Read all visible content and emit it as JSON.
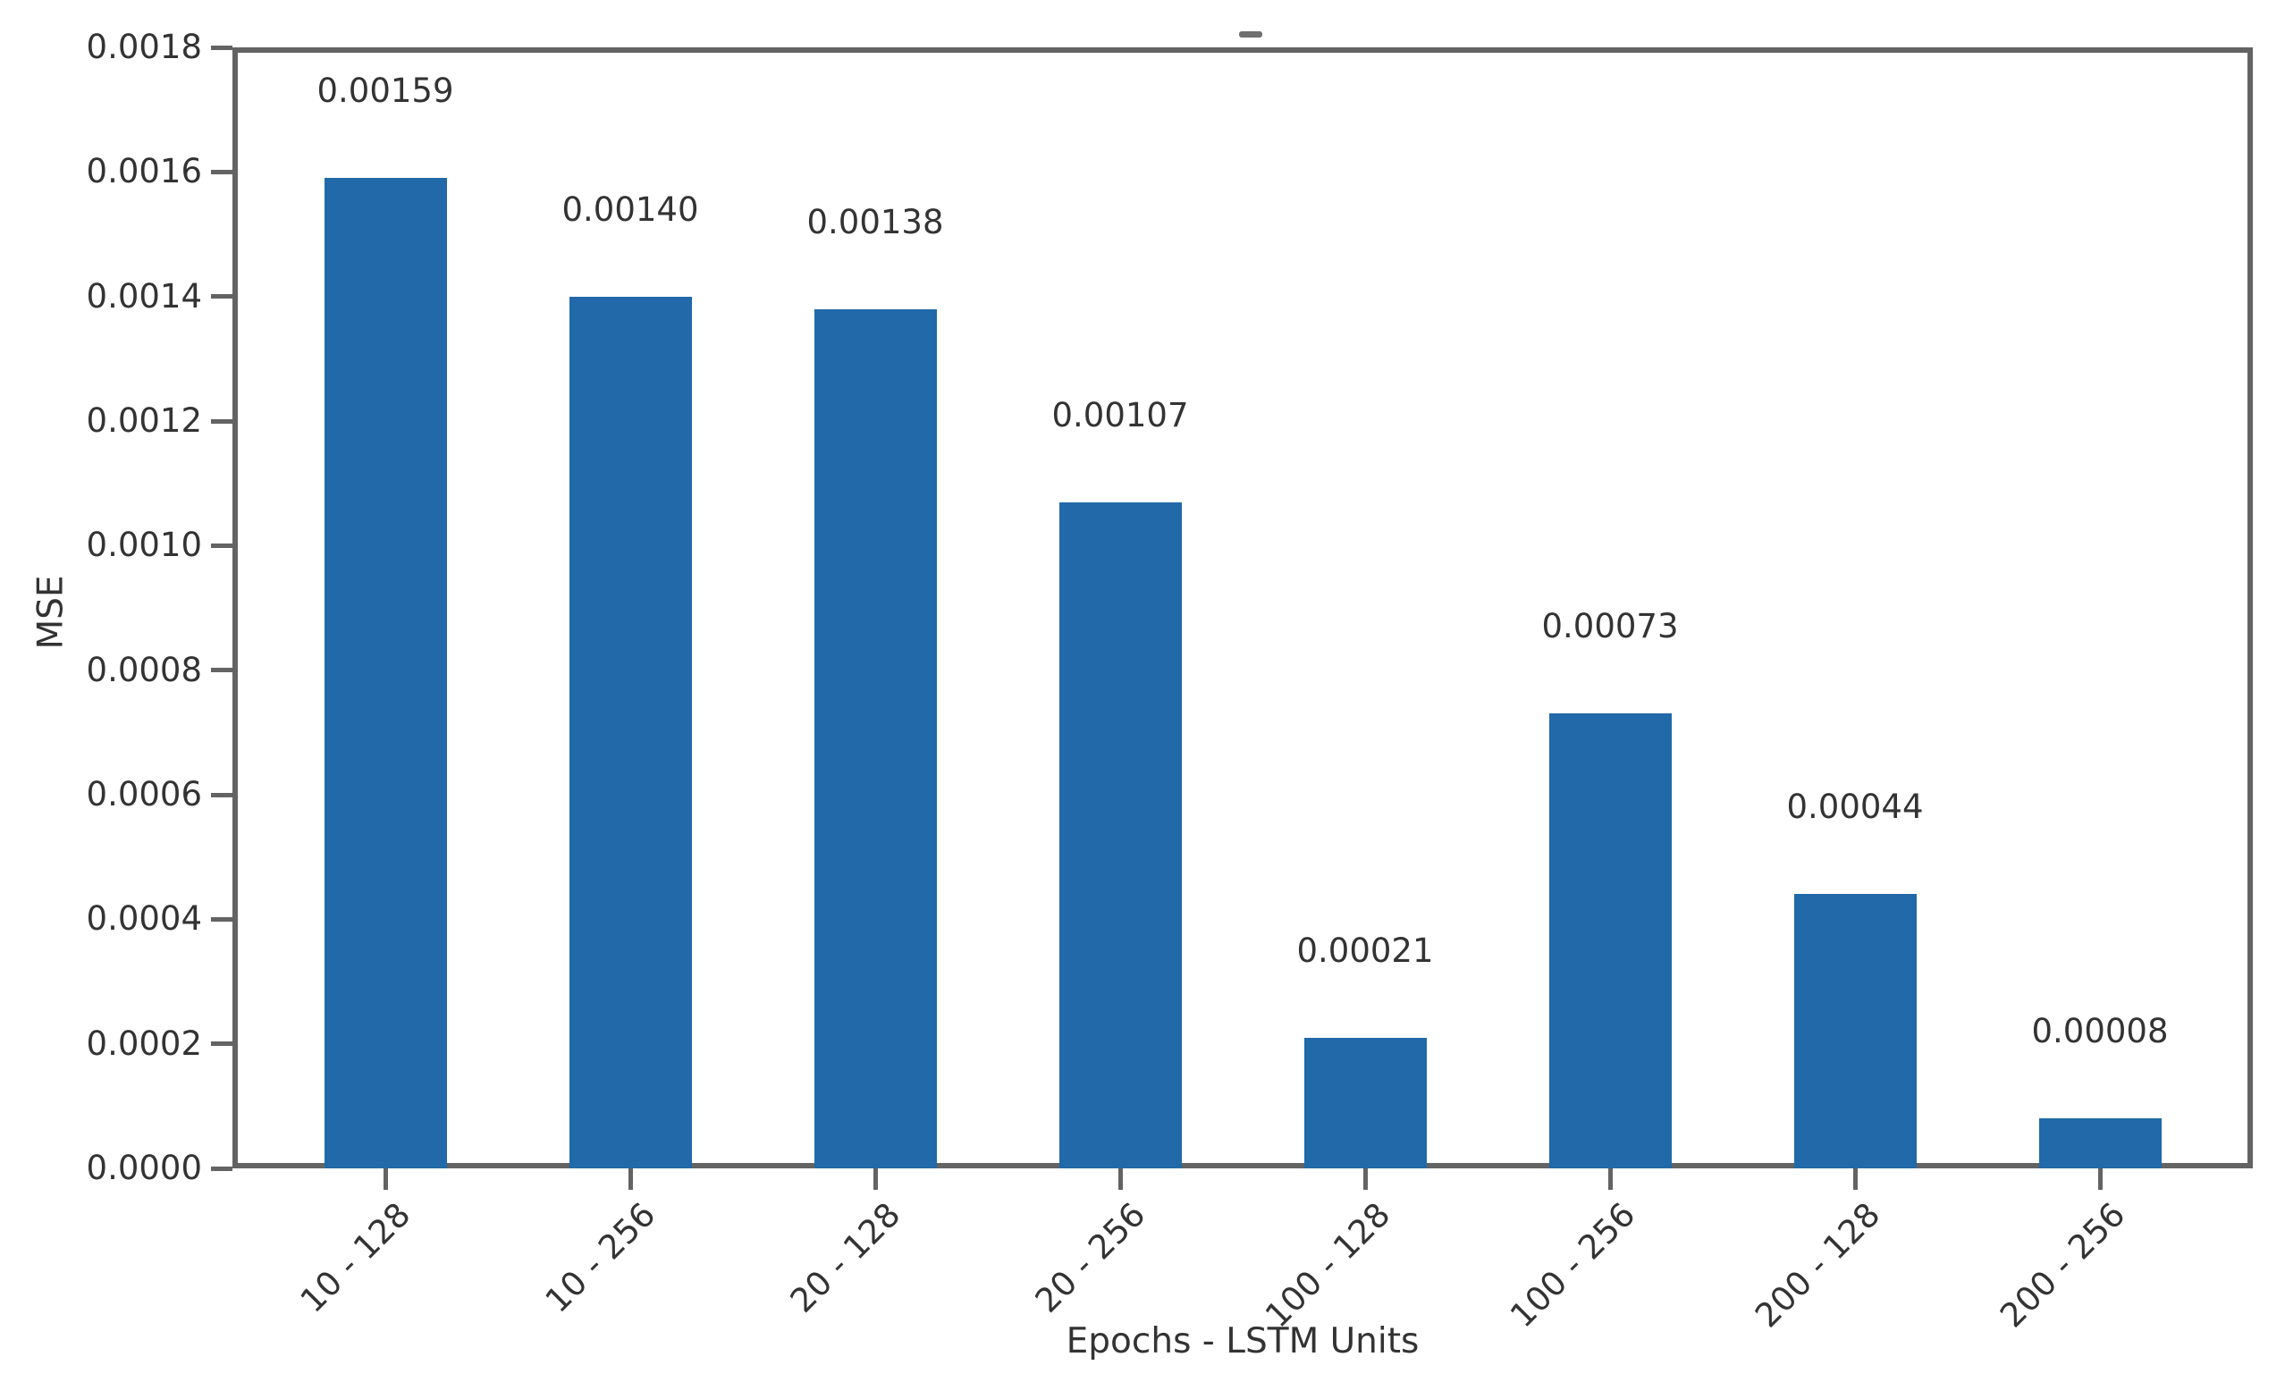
{
  "figure": {
    "title_fragment": "-"
  },
  "chart_data": {
    "type": "bar",
    "title": "",
    "xlabel": "Epochs - LSTM Units",
    "ylabel": "MSE",
    "categories": [
      "10 - 128",
      "10 - 256",
      "20 - 128",
      "20 - 256",
      "100 - 128",
      "100 - 256",
      "200 - 128",
      "200 - 256"
    ],
    "values": [
      0.00159,
      0.0014,
      0.00138,
      0.00107,
      0.00021,
      0.00073,
      0.00044,
      8e-05
    ],
    "bar_labels": [
      "0.00159",
      "0.00140",
      "0.00138",
      "0.00107",
      "0.00021",
      "0.00073",
      "0.00044",
      "0.00008"
    ],
    "ylim": [
      0.0,
      0.0018
    ],
    "yticks": [
      "0.0000",
      "0.0002",
      "0.0004",
      "0.0006",
      "0.0008",
      "0.0010",
      "0.0012",
      "0.0014",
      "0.0016",
      "0.0018"
    ],
    "grid": false,
    "legend": null,
    "bar_color": "#2169a8",
    "axis_color": "#636363",
    "text_color": "#333333"
  }
}
